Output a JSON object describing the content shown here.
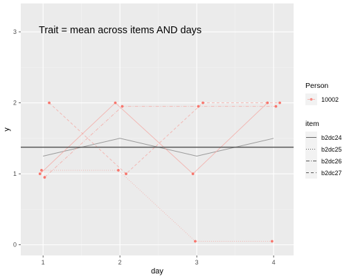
{
  "chart_data": {
    "type": "line",
    "annotation": "Trait = mean across items AND days",
    "xlabel": "day",
    "ylabel": "y",
    "xlim": [
      0.71,
      4.26
    ],
    "ylim": [
      -0.15,
      3.4
    ],
    "x_ticks": [
      1,
      2,
      3,
      4
    ],
    "y_ticks": [
      0,
      1,
      2,
      3
    ],
    "grid": true,
    "legend_position": "right",
    "trait_line": 1.375,
    "mean_line": {
      "x": [
        1,
        2,
        3,
        4
      ],
      "y": [
        1.25,
        1.5,
        1.25,
        1.5
      ]
    },
    "legends": {
      "person": {
        "title": "Person",
        "entries": [
          "10002"
        ]
      },
      "item": {
        "title": "item",
        "entries": [
          {
            "label": "b2dc24",
            "dash": "solid"
          },
          {
            "label": "b2dc25",
            "dash": "dotted"
          },
          {
            "label": "b2dc26",
            "dash": "dashdot"
          },
          {
            "label": "b2dc27",
            "dash": "dashed"
          }
        ]
      }
    },
    "series": [
      {
        "name": "b2dc24",
        "dash": "solid",
        "x": [
          0.96,
          1.94,
          2.95,
          3.92
        ],
        "y": [
          1.0,
          2.0,
          1.0,
          2.0
        ]
      },
      {
        "name": "b2dc25",
        "dash": "dotted",
        "x": [
          0.98,
          1.98,
          2.98,
          3.98
        ],
        "y": [
          1.05,
          1.05,
          0.05,
          0.05
        ]
      },
      {
        "name": "b2dc26",
        "dash": "dashdot",
        "x": [
          1.02,
          2.03,
          3.02,
          4.03
        ],
        "y": [
          0.95,
          1.95,
          1.95,
          1.95
        ]
      },
      {
        "name": "b2dc27",
        "dash": "dashed",
        "x": [
          1.08,
          2.08,
          3.08,
          4.08
        ],
        "y": [
          2.0,
          1.0,
          2.0,
          2.0
        ]
      }
    ],
    "colors": {
      "panel": "#ebebeb",
      "grid_major": "#ffffff",
      "grid_minor": "#f4f4f4",
      "series": "#f8766d",
      "series_line": "#f4a6a0",
      "mean_line": "#999999",
      "trait_line": "#555555",
      "text": "#000000",
      "axis_text": "#4d4d4d",
      "tick": "#333333"
    }
  }
}
